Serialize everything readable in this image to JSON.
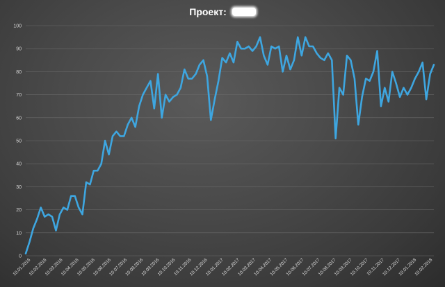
{
  "chart_data": {
    "type": "line",
    "title": "Проект:",
    "xlabel": "",
    "ylabel": "",
    "ylim": [
      0,
      100
    ],
    "yticks": [
      0,
      10,
      20,
      30,
      40,
      50,
      60,
      70,
      80,
      90,
      100
    ],
    "grid": true,
    "x_tick_labels": [
      "10.01.2016",
      "10.02.2016",
      "10.03.2016",
      "10.04.2016",
      "10.05.2016",
      "10.06.2016",
      "10.07.2016",
      "10.08.2016",
      "10.09.2016",
      "10.10.2016",
      "10.11.2016",
      "10.12.2016",
      "10.01.2017",
      "10.02.2017",
      "10.03.2017",
      "10.04.2017",
      "10.05.2017",
      "10.06.2017",
      "10.07.2017",
      "10.08.2017",
      "10.09.2017",
      "10.10.2017",
      "10.11.2017",
      "10.12.2017",
      "10.01.2018",
      "10.02.2018"
    ],
    "line_color": "#3ea6e0",
    "series": [
      {
        "values": [
          1,
          6,
          12,
          16,
          21,
          17,
          18,
          17,
          11,
          18,
          21,
          20,
          26,
          26,
          21,
          18,
          32,
          31,
          37,
          37,
          40,
          50,
          44,
          52,
          54,
          52,
          52,
          57,
          60,
          56,
          65,
          70,
          73,
          76,
          64,
          79,
          60,
          70,
          67,
          69,
          70,
          73,
          81,
          77,
          77,
          79,
          83,
          85,
          78,
          59,
          68,
          76,
          86,
          84,
          88,
          84,
          93,
          90,
          90,
          91,
          89,
          91,
          95,
          87,
          83,
          91,
          90,
          91,
          80,
          87,
          81,
          85,
          95,
          87,
          95,
          91,
          91,
          88,
          86,
          85,
          88,
          85,
          51,
          73,
          70,
          87,
          85,
          77,
          57,
          69,
          77,
          76,
          80,
          89,
          65,
          73,
          67,
          80,
          75,
          69,
          73,
          70,
          73,
          77,
          80,
          84,
          68,
          79,
          83
        ]
      }
    ]
  }
}
